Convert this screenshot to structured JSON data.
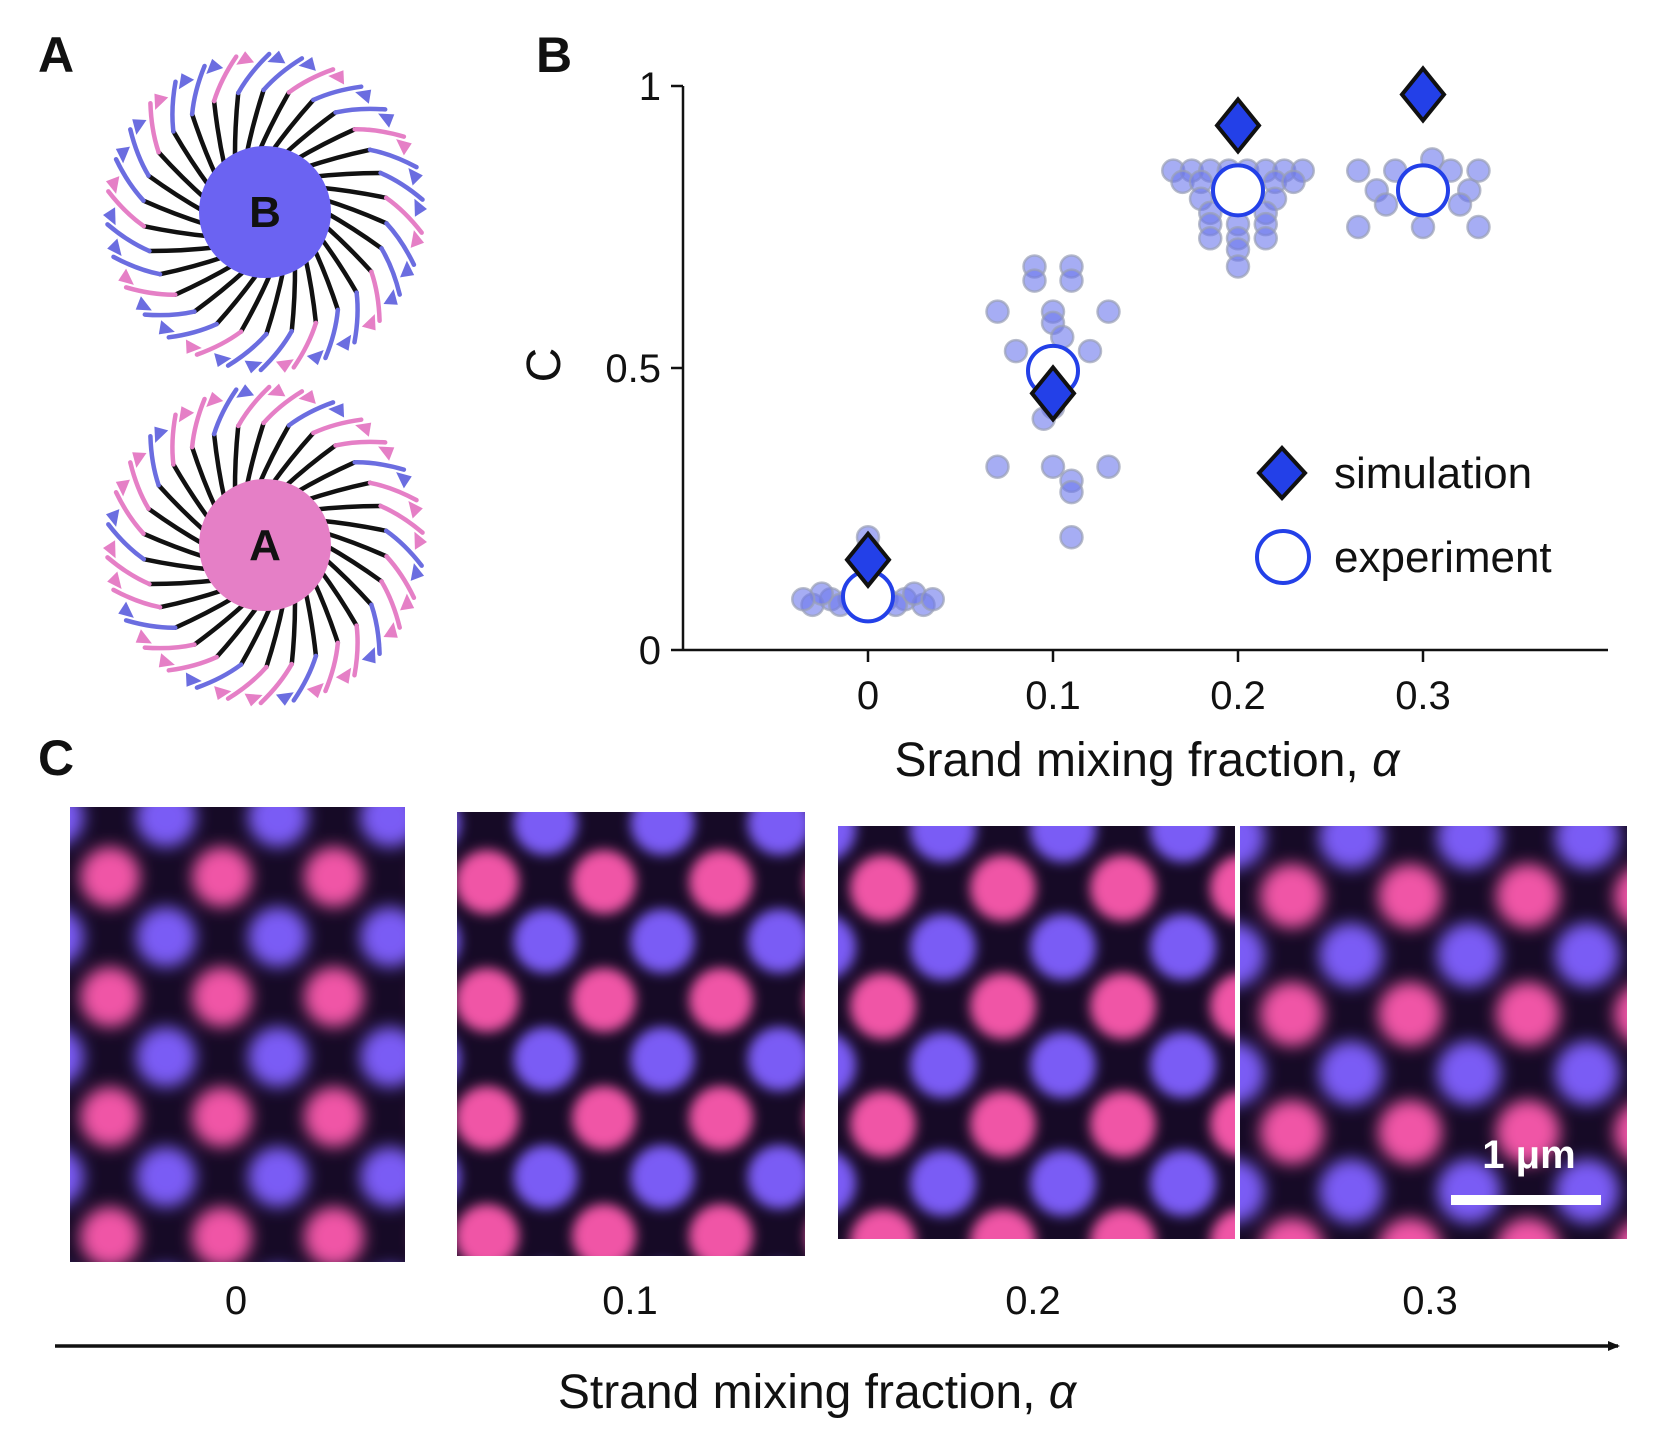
{
  "panels": {
    "a": "A",
    "b": "B",
    "c": "C"
  },
  "particles": [
    {
      "label": "B",
      "core_color": "#6b63f2"
    },
    {
      "label": "A",
      "core_color": "#e57fc6"
    }
  ],
  "strand_colors": {
    "body": "#111111",
    "a_tip": "#e57fc6",
    "b_tip": "#6b6de0"
  },
  "chart_data": {
    "type": "scatter",
    "title": "",
    "xlabel": "Srand mixing fraction, ",
    "xlabel_symbol": "α",
    "ylabel": "C",
    "x_ticks": [
      "0",
      "0.1",
      "0.2",
      "0.3"
    ],
    "y_ticks": [
      "0",
      "0.5",
      "1"
    ],
    "xlim": [
      -0.1,
      0.4
    ],
    "ylim": [
      0,
      1
    ],
    "legend_position": "right",
    "series": [
      {
        "name": "simulation",
        "marker": "diamond",
        "color": "#2340e8",
        "points": [
          {
            "x": 0,
            "y": 0.16
          },
          {
            "x": 0.1,
            "y": 0.455
          },
          {
            "x": 0.2,
            "y": 0.93
          },
          {
            "x": 0.3,
            "y": 0.985
          }
        ]
      },
      {
        "name": "experiment",
        "marker": "open-circle",
        "color": "#2340e8",
        "points": [
          {
            "x": 0,
            "y": 0.095
          },
          {
            "x": 0.1,
            "y": 0.495
          },
          {
            "x": 0.2,
            "y": 0.815
          },
          {
            "x": 0.3,
            "y": 0.815
          }
        ]
      },
      {
        "name": "",
        "marker": "faint-dot",
        "color": "#6b76ec",
        "points": [
          {
            "x": -0.02,
            "y": 0.09
          },
          {
            "x": -0.01,
            "y": 0.09
          },
          {
            "x": 0,
            "y": 0.09
          },
          {
            "x": 0.01,
            "y": 0.09
          },
          {
            "x": 0.02,
            "y": 0.09
          },
          {
            "x": -0.03,
            "y": 0.08
          },
          {
            "x": -0.015,
            "y": 0.08
          },
          {
            "x": 0,
            "y": 0.08
          },
          {
            "x": 0.015,
            "y": 0.08
          },
          {
            "x": 0.03,
            "y": 0.08
          },
          {
            "x": -0.025,
            "y": 0.1
          },
          {
            "x": 0.025,
            "y": 0.1
          },
          {
            "x": -0.035,
            "y": 0.09
          },
          {
            "x": 0.035,
            "y": 0.09
          },
          {
            "x": 0,
            "y": 0.2
          },
          {
            "x": 0,
            "y": 0.18
          },
          {
            "x": 0.09,
            "y": 0.68
          },
          {
            "x": 0.11,
            "y": 0.68
          },
          {
            "x": 0.09,
            "y": 0.655
          },
          {
            "x": 0.11,
            "y": 0.655
          },
          {
            "x": 0.07,
            "y": 0.6
          },
          {
            "x": 0.1,
            "y": 0.6
          },
          {
            "x": 0.13,
            "y": 0.6
          },
          {
            "x": 0.1,
            "y": 0.58
          },
          {
            "x": 0.105,
            "y": 0.555
          },
          {
            "x": 0.08,
            "y": 0.53
          },
          {
            "x": 0.12,
            "y": 0.53
          },
          {
            "x": 0.1,
            "y": 0.51
          },
          {
            "x": 0.1,
            "y": 0.43
          },
          {
            "x": 0.095,
            "y": 0.41
          },
          {
            "x": 0.07,
            "y": 0.325
          },
          {
            "x": 0.1,
            "y": 0.325
          },
          {
            "x": 0.13,
            "y": 0.325
          },
          {
            "x": 0.11,
            "y": 0.3
          },
          {
            "x": 0.11,
            "y": 0.28
          },
          {
            "x": 0.11,
            "y": 0.2
          },
          {
            "x": 0.165,
            "y": 0.85
          },
          {
            "x": 0.175,
            "y": 0.85
          },
          {
            "x": 0.185,
            "y": 0.85
          },
          {
            "x": 0.195,
            "y": 0.85
          },
          {
            "x": 0.205,
            "y": 0.85
          },
          {
            "x": 0.215,
            "y": 0.85
          },
          {
            "x": 0.225,
            "y": 0.85
          },
          {
            "x": 0.235,
            "y": 0.85
          },
          {
            "x": 0.17,
            "y": 0.83
          },
          {
            "x": 0.18,
            "y": 0.83
          },
          {
            "x": 0.22,
            "y": 0.83
          },
          {
            "x": 0.23,
            "y": 0.83
          },
          {
            "x": 0.18,
            "y": 0.8
          },
          {
            "x": 0.22,
            "y": 0.8
          },
          {
            "x": 0.185,
            "y": 0.775
          },
          {
            "x": 0.215,
            "y": 0.775
          },
          {
            "x": 0.185,
            "y": 0.755
          },
          {
            "x": 0.2,
            "y": 0.755
          },
          {
            "x": 0.215,
            "y": 0.755
          },
          {
            "x": 0.185,
            "y": 0.73
          },
          {
            "x": 0.2,
            "y": 0.73
          },
          {
            "x": 0.215,
            "y": 0.73
          },
          {
            "x": 0.2,
            "y": 0.71
          },
          {
            "x": 0.2,
            "y": 0.68
          },
          {
            "x": 0.265,
            "y": 0.85
          },
          {
            "x": 0.285,
            "y": 0.85
          },
          {
            "x": 0.315,
            "y": 0.85
          },
          {
            "x": 0.33,
            "y": 0.85
          },
          {
            "x": 0.305,
            "y": 0.87
          },
          {
            "x": 0.275,
            "y": 0.815
          },
          {
            "x": 0.325,
            "y": 0.815
          },
          {
            "x": 0.28,
            "y": 0.79
          },
          {
            "x": 0.3,
            "y": 0.79
          },
          {
            "x": 0.32,
            "y": 0.79
          },
          {
            "x": 0.265,
            "y": 0.75
          },
          {
            "x": 0.3,
            "y": 0.75
          },
          {
            "x": 0.33,
            "y": 0.75
          }
        ]
      }
    ]
  },
  "micrographs": {
    "colors": {
      "background": "#160a26",
      "pink": "#f054a6",
      "blue": "#7a5cf5"
    },
    "labels": [
      "0",
      "0.1",
      "0.2",
      "0.3"
    ],
    "scale_bar": "1 μm",
    "axis_title": "Strand mixing fraction, ",
    "axis_symbol": "α"
  }
}
